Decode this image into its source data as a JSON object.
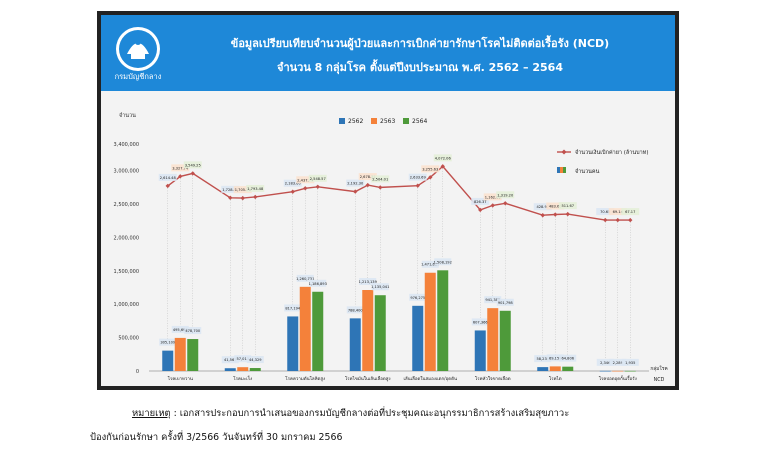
{
  "header": {
    "logo_text": "กรมบัญชีกลาง",
    "title_line1": "ข้อมูลเปรียบเทียบจำนวนผู้ป่วยและการเบิกค่ายารักษาโรคไม่ติดต่อเรื้อรัง (NCD)",
    "title_line2": "จำนวน 8 กลุ่มโรค ตั้งแต่ปีงบประมาณ พ.ศ. 2562 – 2564"
  },
  "colors": {
    "banner": "#1e88d8",
    "s2562": "#2e75b6",
    "s2563": "#f4813a",
    "s2564": "#4e9a3a",
    "line": "#c0504d"
  },
  "chart_data": {
    "type": "bar",
    "ylabel": "จำนวน",
    "xlabel_line1": "กลุ่มโรค",
    "xlabel_line2": "NCD",
    "ylim": [
      0,
      3400000
    ],
    "yticks": [
      "0",
      "500,000",
      "1,000,000",
      "1,500,000",
      "2,000,000",
      "2,500,000",
      "3,000,000",
      "3,400,000"
    ],
    "ytick_values": [
      0,
      500000,
      1000000,
      1500000,
      2000000,
      2500000,
      3000000,
      3400000
    ],
    "categories": [
      "โรคเบาหวาน",
      "โรคมะเร็ง",
      "โรคความดันโลหิตสูง",
      "โรคไขมันในเส้นเลือดสูง",
      "เส้นเลือดในสมองแตก/อุดตัน",
      "โรคหัวใจขาดเลือด",
      "โรคไต",
      "โรคปอดอุดกั้นเรื้อรัง"
    ],
    "series": [
      {
        "name": "2562",
        "values": [
          305109,
          41567,
          817194,
          788400,
          976275,
          607366,
          58231,
          2346
        ],
        "labels": [
          "305,109",
          "41,567",
          "817,194",
          "788,400",
          "976,275",
          "607,366",
          "58,231",
          "2,346"
        ]
      },
      {
        "name": "2563",
        "values": [
          495698,
          57013,
          1260731,
          1213139,
          1471617,
          941389,
          69158,
          2289
        ],
        "labels": [
          "495,698",
          "57,013",
          "1,260,731",
          "1,213,139",
          "1,471,617",
          "941,389",
          "69,158",
          "2,289"
        ]
      },
      {
        "name": "2564",
        "values": [
          478700,
          44329,
          1186893,
          1135041,
          1508192,
          901798,
          64806,
          1935
        ],
        "labels": [
          "478,700",
          "44,329",
          "1,186,893",
          "1,135,041",
          "1,508,192",
          "901,798",
          "64,806",
          "1,935"
        ]
      }
    ],
    "line_series": {
      "name": "จำนวนเงินเบิกค่ายา (ล้านบาท)",
      "values": [
        2614.48,
        3327.74,
        3549.25,
        1728.83,
        1705.29,
        1793.48,
        2183.6,
        2437.7,
        2548.57,
        2192.3,
        2678.31,
        2504.01,
        2633.69,
        3255.63,
        4072.06,
        826.37,
        1162.09,
        1319.2,
        428.97,
        483.6,
        511.67,
        70.65,
        69.14,
        67.17
      ],
      "labels": [
        "2,614.48",
        "3,327.74",
        "3,549.25",
        "1,728.83",
        "1,705.29",
        "1,793.48",
        "2,183.60",
        "2,437.70",
        "2,548.57",
        "2,192.30",
        "2,678.31",
        "2,504.01",
        "2,633.69",
        "3,255.63",
        "4,072.06",
        "826.37",
        "1,162.09",
        "1,319.20",
        "428.97",
        "483.60",
        "511.67",
        "70.65",
        "69.14",
        "67.17"
      ]
    },
    "bar_legend": "จำนวนคน",
    "legend_position": "top-right",
    "grid": false
  },
  "footnote": {
    "label": "หมายเหตุ",
    "line1": " :  เอกสารประกอบการนำเสนอของกรมบัญชีกลางต่อที่ประชุมคณะอนุกรรมาธิการสร้างเสริมสุขภาวะ",
    "line2": "ป้องกันก่อนรักษา ครั้งที่ 3/2566 วันจันทร์ที่ 30 มกราคม 2566"
  }
}
